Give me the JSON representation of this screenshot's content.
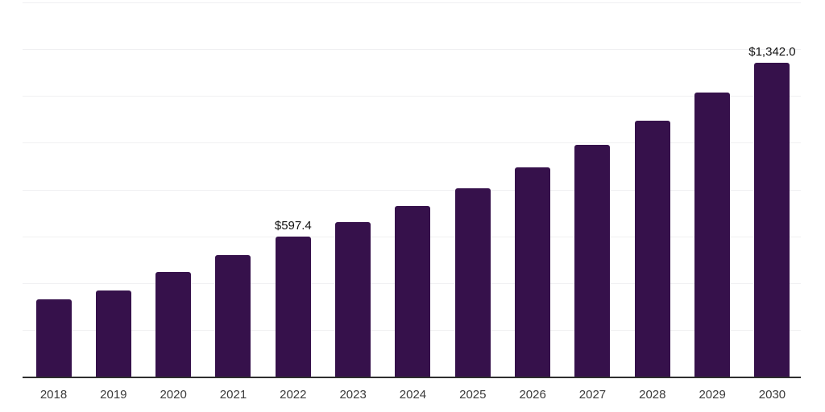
{
  "chart_data": {
    "type": "bar",
    "title": "",
    "xlabel": "",
    "ylabel": "",
    "categories": [
      "2018",
      "2019",
      "2020",
      "2021",
      "2022",
      "2023",
      "2024",
      "2025",
      "2026",
      "2027",
      "2028",
      "2029",
      "2030"
    ],
    "values": [
      330,
      368,
      446,
      518,
      597.4,
      660,
      731,
      806,
      896,
      991,
      1094,
      1216,
      1342
    ],
    "value_labels": {
      "2022": "$597.4",
      "2030": "$1,342.0"
    },
    "ylim": [
      0,
      1600
    ],
    "gridline_step": 200,
    "grid": true,
    "legend_position": "none",
    "y_axis_labels_visible": false,
    "colors": {
      "bar": "#36114B",
      "axis_line": "#2e2e2e",
      "gridline": "#f0f0f2",
      "tick_label": "#3a3a3a",
      "data_label": "#111111"
    }
  }
}
